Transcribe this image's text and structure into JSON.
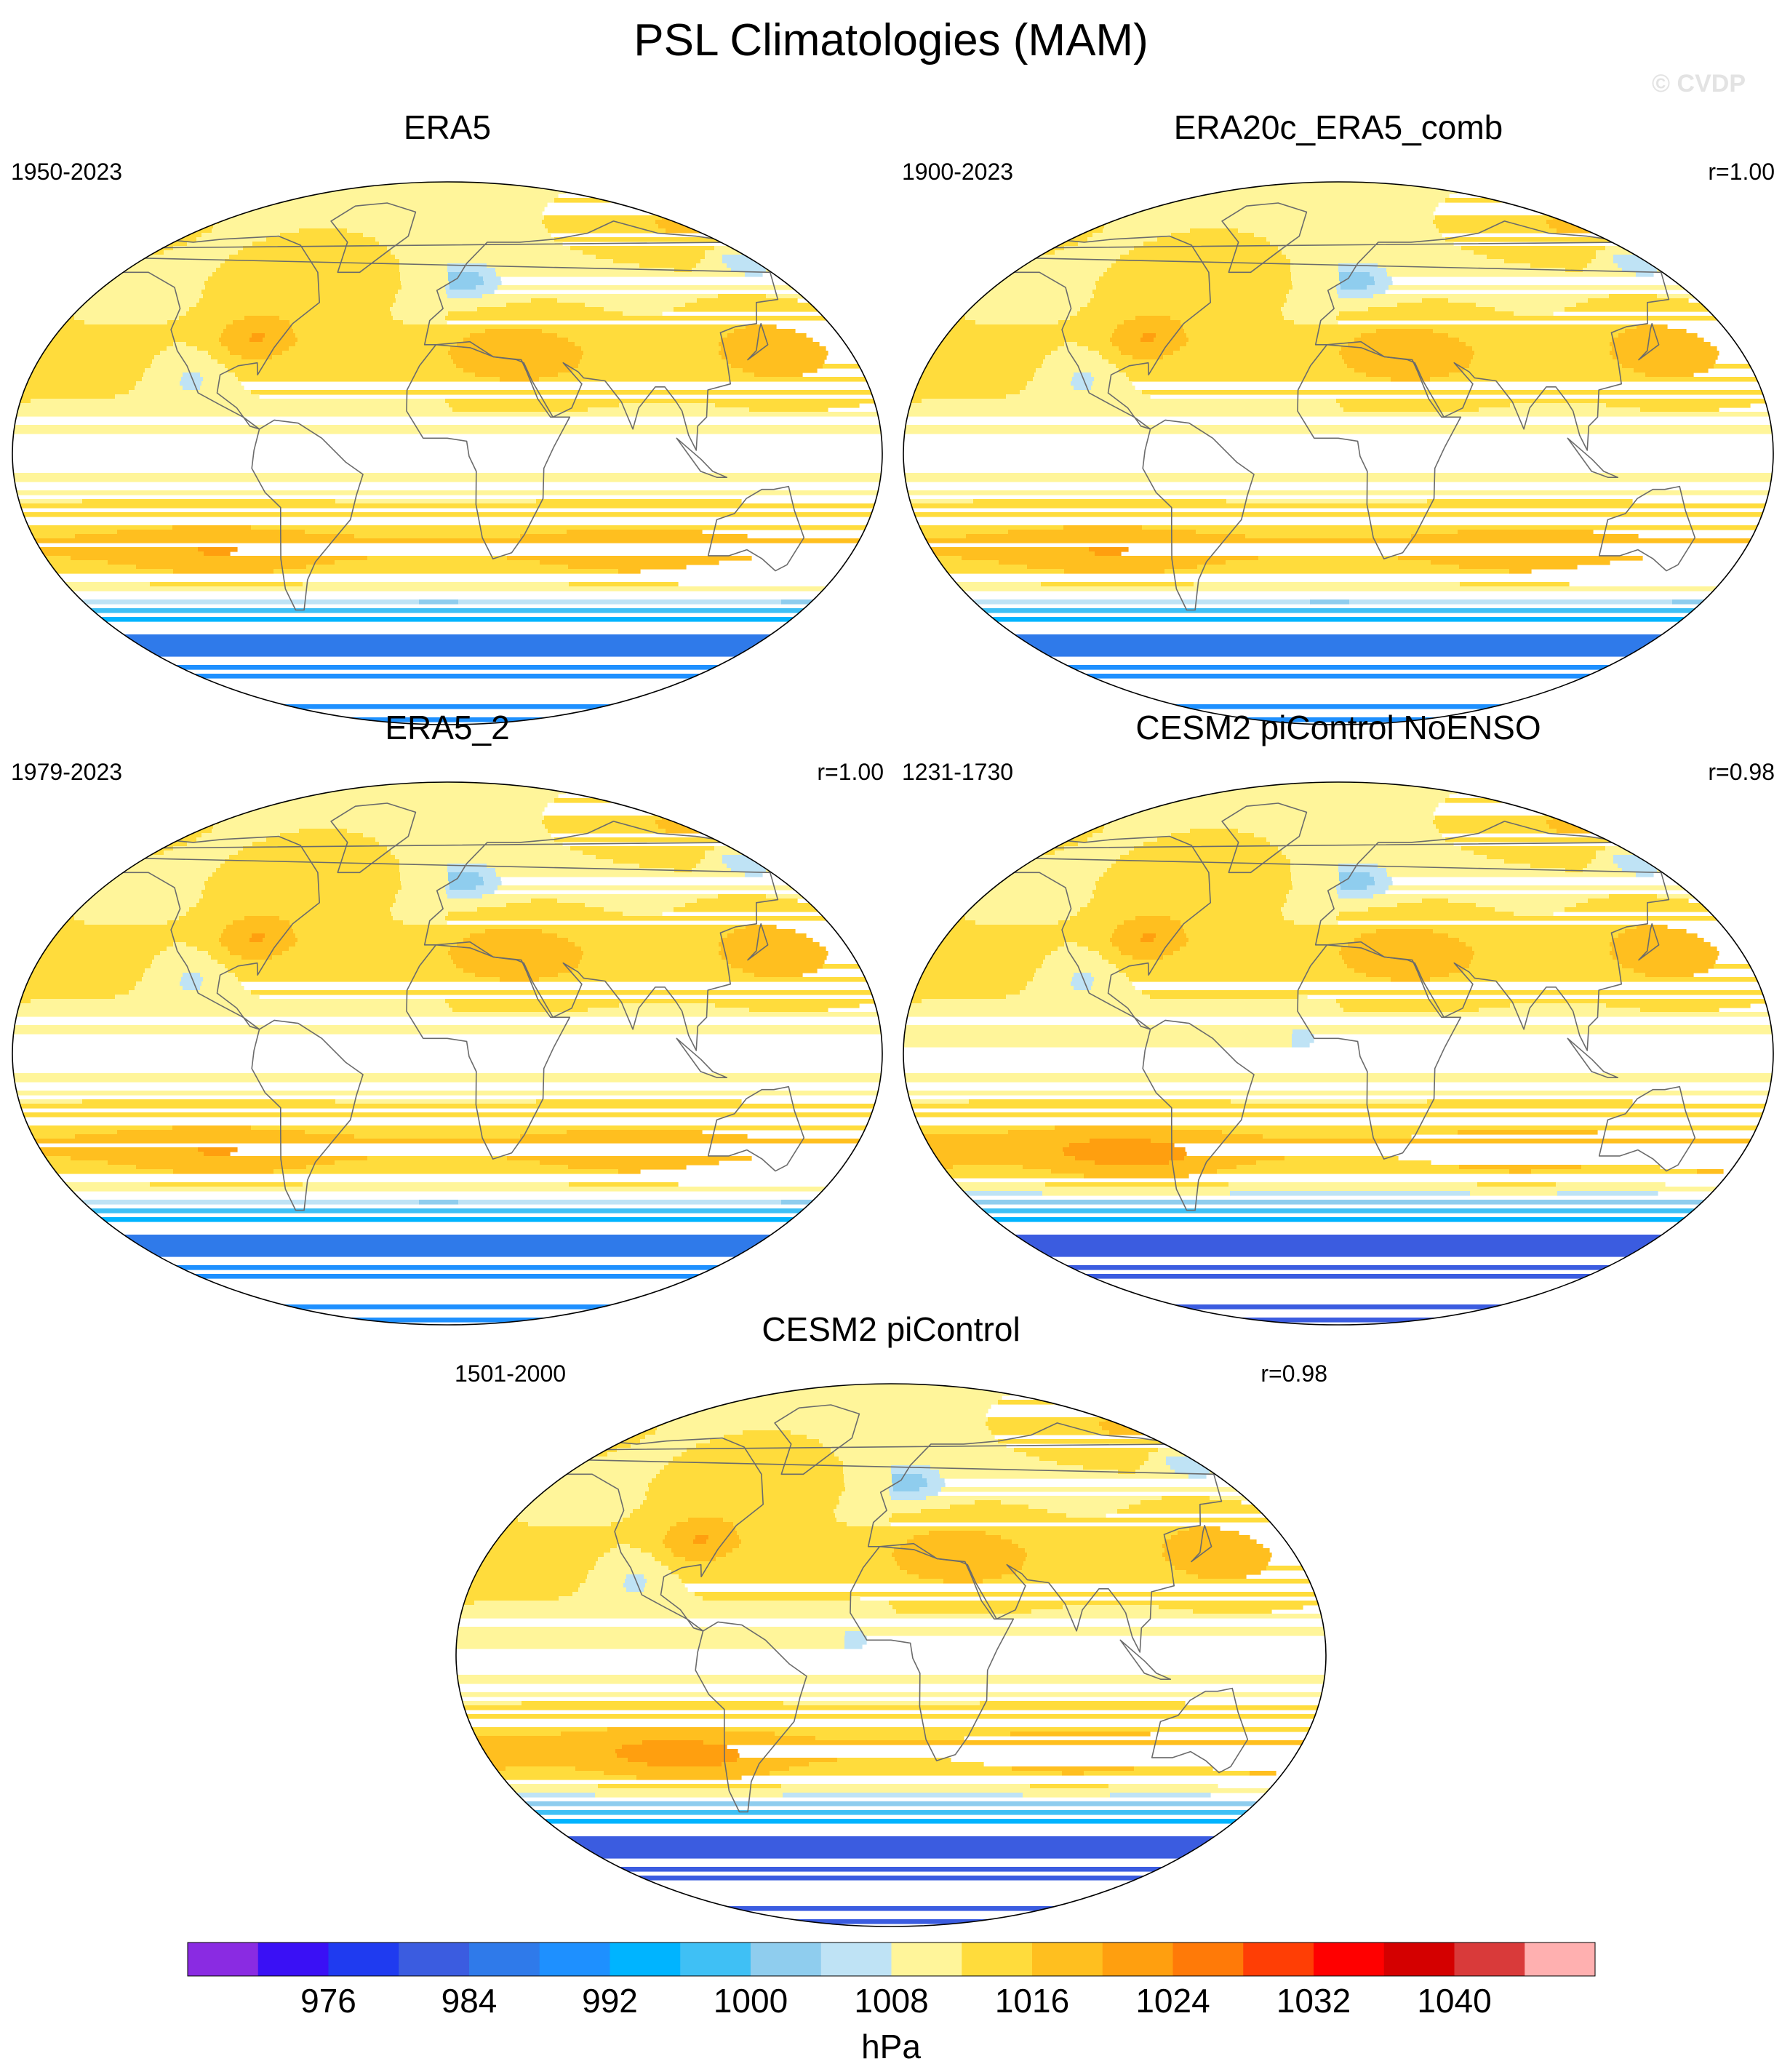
{
  "title": "PSL Climatologies (MAM)",
  "watermark": "© CVDP",
  "panels": [
    {
      "title": "ERA5",
      "period": "1950-2023",
      "corr": "",
      "variant": 0
    },
    {
      "title": "ERA20c_ERA5_comb",
      "period": "1900-2023",
      "corr": "r=1.00",
      "variant": 0
    },
    {
      "title": "ERA5_2",
      "period": "1979-2023",
      "corr": "r=1.00",
      "variant": 0
    },
    {
      "title": "CESM2 piControl NoENSO",
      "period": "1231-1730",
      "corr": "r=0.98",
      "variant": 1
    },
    {
      "title": "CESM2 piControl",
      "period": "1501-2000",
      "corr": "r=0.98",
      "variant": 1
    }
  ],
  "chart_data": {
    "type": "heatmap",
    "projection": "Robinson",
    "variable": "PSL",
    "season": "MAM",
    "units": "hPa",
    "colorbar": {
      "levels": [
        972,
        976,
        980,
        984,
        988,
        992,
        996,
        1000,
        1004,
        1008,
        1012,
        1016,
        1020,
        1024,
        1028,
        1032,
        1036,
        1040,
        1044
      ],
      "tick_labels": [
        "976",
        "984",
        "992",
        "1000",
        "1008",
        "1016",
        "1024",
        "1032",
        "1040"
      ],
      "colors": [
        "#8a2be2",
        "#3a10f5",
        "#1f3bf0",
        "#3b5ce0",
        "#2f7aea",
        "#1e90ff",
        "#00b4ff",
        "#3fc0f5",
        "#8fcdee",
        "#bfe3f5",
        "#fff59a",
        "#ffdc3c",
        "#ffbf1f",
        "#ff9f0f",
        "#ff7a08",
        "#ff3e05",
        "#ff0000",
        "#d40000",
        "#d93a3a",
        "#ffb0b0"
      ]
    }
  }
}
